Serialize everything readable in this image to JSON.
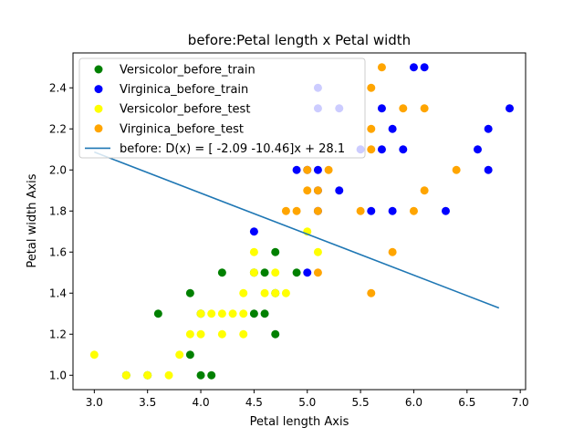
{
  "chart_data": {
    "type": "scatter",
    "title": "before:Petal length x Petal width",
    "xlabel": "Petal length Axis",
    "ylabel": "Petal width Axis",
    "xlim": [
      2.8,
      7.05
    ],
    "ylim": [
      0.93,
      2.57
    ],
    "xticks": [
      "3.0",
      "3.5",
      "4.0",
      "4.5",
      "5.0",
      "5.5",
      "6.0",
      "6.5",
      "7.0"
    ],
    "yticks": [
      "1.0",
      "1.2",
      "1.4",
      "1.6",
      "1.8",
      "2.0",
      "2.2",
      "2.4"
    ],
    "grid": false,
    "legend_position": "upper-left",
    "series": [
      {
        "name": "Versicolor_before_train",
        "color": "#008000",
        "points": [
          [
            3.3,
            1.0
          ],
          [
            3.5,
            1.0
          ],
          [
            3.6,
            1.3
          ],
          [
            3.9,
            1.1
          ],
          [
            3.9,
            1.4
          ],
          [
            4.0,
            1.0
          ],
          [
            4.0,
            1.3
          ],
          [
            4.1,
            1.0
          ],
          [
            4.2,
            1.5
          ],
          [
            4.5,
            1.3
          ],
          [
            4.5,
            1.5
          ],
          [
            4.6,
            1.3
          ],
          [
            4.6,
            1.5
          ],
          [
            4.7,
            1.2
          ],
          [
            4.7,
            1.4
          ],
          [
            4.7,
            1.6
          ],
          [
            4.9,
            1.5
          ]
        ]
      },
      {
        "name": "Virginica_before_train",
        "color": "#0000ff",
        "points": [
          [
            4.5,
            1.7
          ],
          [
            4.9,
            2.0
          ],
          [
            5.0,
            1.5
          ],
          [
            5.0,
            2.0
          ],
          [
            5.1,
            1.8
          ],
          [
            5.1,
            1.9
          ],
          [
            5.1,
            2.0
          ],
          [
            5.1,
            2.3
          ],
          [
            5.1,
            2.4
          ],
          [
            5.3,
            1.9
          ],
          [
            5.3,
            2.3
          ],
          [
            5.5,
            2.1
          ],
          [
            5.6,
            1.8
          ],
          [
            5.7,
            2.1
          ],
          [
            5.7,
            2.3
          ],
          [
            5.8,
            1.8
          ],
          [
            5.8,
            2.2
          ],
          [
            5.9,
            2.1
          ],
          [
            6.0,
            2.5
          ],
          [
            6.1,
            2.5
          ],
          [
            6.3,
            1.8
          ],
          [
            6.6,
            2.1
          ],
          [
            6.7,
            2.0
          ],
          [
            6.7,
            2.2
          ],
          [
            6.9,
            2.3
          ]
        ]
      },
      {
        "name": "Versicolor_before_test",
        "color": "#ffff00",
        "points": [
          [
            3.0,
            1.1
          ],
          [
            3.3,
            1.0
          ],
          [
            3.5,
            1.0
          ],
          [
            3.7,
            1.0
          ],
          [
            3.8,
            1.1
          ],
          [
            3.9,
            1.2
          ],
          [
            4.0,
            1.2
          ],
          [
            4.0,
            1.3
          ],
          [
            4.1,
            1.3
          ],
          [
            4.2,
            1.2
          ],
          [
            4.2,
            1.3
          ],
          [
            4.3,
            1.3
          ],
          [
            4.4,
            1.2
          ],
          [
            4.4,
            1.3
          ],
          [
            4.4,
            1.4
          ],
          [
            4.5,
            1.5
          ],
          [
            4.5,
            1.6
          ],
          [
            4.6,
            1.4
          ],
          [
            4.7,
            1.4
          ],
          [
            4.7,
            1.5
          ],
          [
            4.8,
            1.4
          ],
          [
            5.0,
            1.7
          ],
          [
            5.1,
            1.6
          ]
        ]
      },
      {
        "name": "Virginica_before_test",
        "color": "#ffa500",
        "points": [
          [
            4.8,
            1.8
          ],
          [
            4.9,
            1.8
          ],
          [
            5.0,
            1.9
          ],
          [
            5.0,
            2.0
          ],
          [
            5.1,
            1.5
          ],
          [
            5.1,
            1.8
          ],
          [
            5.1,
            1.9
          ],
          [
            5.2,
            2.0
          ],
          [
            5.5,
            1.8
          ],
          [
            5.6,
            1.4
          ],
          [
            5.6,
            2.1
          ],
          [
            5.6,
            2.2
          ],
          [
            5.6,
            2.4
          ],
          [
            5.7,
            2.5
          ],
          [
            5.8,
            1.6
          ],
          [
            5.9,
            2.3
          ],
          [
            6.0,
            1.8
          ],
          [
            6.1,
            2.3
          ],
          [
            6.1,
            1.9
          ],
          [
            6.4,
            2.0
          ]
        ]
      }
    ],
    "line": {
      "label": "before: D(x) = [ -2.09 -10.46]x + 28.1",
      "color": "#1f77b4",
      "coef": [
        -2.09,
        -10.46
      ],
      "intercept": 28.1,
      "x_range": [
        3.0,
        6.8
      ]
    }
  }
}
